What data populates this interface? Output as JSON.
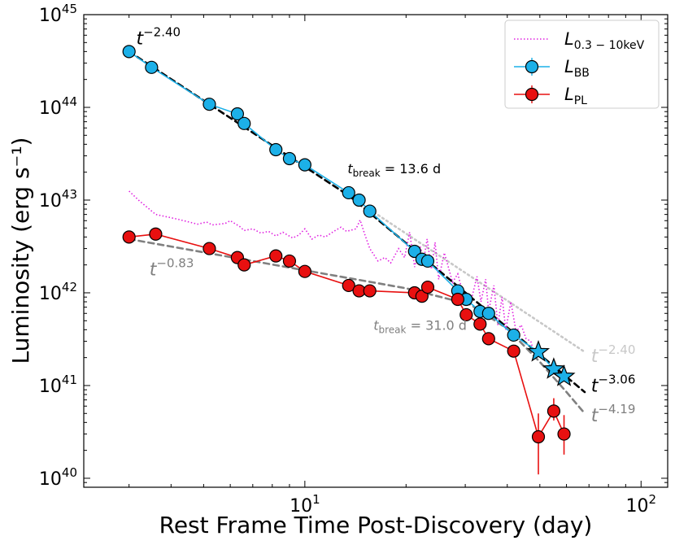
{
  "chart_data": {
    "type": "scatter",
    "x_scale": "log",
    "y_scale": "log",
    "xlabel": "Rest Frame Time Post-Discovery (day)",
    "ylabel": "Luminosity (erg s⁻¹)",
    "xlim": [
      2.2,
      120
    ],
    "ylim": [
      8e+39,
      1e+45
    ],
    "x_ticks": [
      {
        "value": 10,
        "base": "10",
        "exp": "1"
      },
      {
        "value": 100,
        "base": "10",
        "exp": "2"
      }
    ],
    "y_ticks": [
      {
        "value": 1e+40,
        "base": "10",
        "exp": "40"
      },
      {
        "value": 1e+41,
        "base": "10",
        "exp": "41"
      },
      {
        "value": 1e+42,
        "base": "10",
        "exp": "42"
      },
      {
        "value": 1e+43,
        "base": "10",
        "exp": "43"
      },
      {
        "value": 1e+44,
        "base": "10",
        "exp": "44"
      },
      {
        "value": 1e+45,
        "base": "10",
        "exp": "45"
      }
    ],
    "legend": {
      "placement": "top-right",
      "entries": [
        {
          "id": "xray",
          "main": "L",
          "sub": "0.3 − 10keV",
          "color": "#e020e0",
          "style": "dotted"
        },
        {
          "id": "bb",
          "main": "L",
          "sub": "BB",
          "color": "#1cb0e8",
          "style": "marker"
        },
        {
          "id": "pl",
          "main": "L",
          "sub": "PL",
          "color": "#e81010",
          "style": "marker"
        }
      ]
    },
    "series": [
      {
        "name": "L_0.3-10keV",
        "color": "#e020e0",
        "style": "dotted",
        "x": [
          3.0,
          3.2,
          3.6,
          4.2,
          4.8,
          5.1,
          5.3,
          5.8,
          6.0,
          6.4,
          6.6,
          7.0,
          7.4,
          7.8,
          8.2,
          8.6,
          9.2,
          9.6,
          10.0,
          10.5,
          11.0,
          11.5,
          12.2,
          12.8,
          13.3,
          14.2,
          14.6,
          15.1,
          15.6,
          16.5,
          17.3,
          18.0,
          19.0,
          19.8,
          20.5,
          21.2,
          22.0,
          22.6,
          23.1,
          23.8,
          24.4,
          25.0,
          26.0,
          27.5,
          28.5,
          29.5,
          30.5,
          31.3,
          32.5,
          33.4,
          34.5,
          35.2,
          36.5,
          37.5,
          38.6,
          39.6,
          41.0,
          42.5,
          44.0,
          45.5,
          47.0,
          48.5
        ],
        "y": [
          1.25e+43,
          1e+43,
          7e+42,
          6.2e+42,
          5.5e+42,
          5.8e+42,
          5.4e+42,
          5.6e+42,
          6e+42,
          5.2e+42,
          4.7e+42,
          4.9e+42,
          4.4e+42,
          4.6e+42,
          4.1e+42,
          4.5e+42,
          3.9e+42,
          4.2e+42,
          4.9e+42,
          3.8e+42,
          4.2e+42,
          4e+42,
          4.6e+42,
          5.1e+42,
          4.6e+42,
          4.9e+42,
          6.1e+42,
          4.2e+42,
          3e+42,
          2.2e+42,
          2.4e+42,
          2.1e+42,
          3e+42,
          2.4e+42,
          4.5e+42,
          1.9e+42,
          3.2e+42,
          2.3e+42,
          3.8e+42,
          1.8e+42,
          3.5e+42,
          1.4e+42,
          2.7e+42,
          1.3e+42,
          1.6e+42,
          1e+42,
          7.5e+41,
          8.5e+41,
          1.5e+42,
          8e+41,
          1.4e+42,
          6.3e+41,
          1.2e+42,
          4.5e+41,
          9e+41,
          4e+41,
          8e+41,
          3.8e+41,
          4.5e+41,
          3.2e+41,
          3e+41,
          2e+41
        ]
      },
      {
        "name": "L_BB",
        "color": "#1cb0e8",
        "style": "marker",
        "x": [
          3.0,
          3.5,
          5.2,
          6.3,
          6.6,
          8.2,
          9.0,
          10.0,
          13.5,
          14.5,
          15.6,
          21.2,
          22.3,
          23.2,
          28.5,
          30.2,
          33.2,
          35.2,
          41.8
        ],
        "y": [
          4e+44,
          2.7e+44,
          1.08e+44,
          8.5e+43,
          6.7e+43,
          3.5e+43,
          2.8e+43,
          2.4e+43,
          1.2e+43,
          1e+43,
          7.6e+42,
          2.8e+42,
          2.3e+42,
          2.2e+42,
          1.05e+42,
          8.5e+41,
          6.3e+41,
          6e+41,
          3.5e+41
        ],
        "star_points": {
          "x": [
            49.5,
            55.0,
            59.0
          ],
          "y": [
            2.3e+41,
            1.5e+41,
            1.25e+41
          ]
        }
      },
      {
        "name": "L_PL",
        "color": "#e81010",
        "style": "marker",
        "x": [
          3.0,
          3.6,
          5.2,
          6.3,
          6.6,
          8.2,
          9.0,
          10.0,
          13.5,
          14.5,
          15.6,
          21.2,
          22.3,
          23.2,
          28.5,
          30.2,
          33.2,
          35.2,
          41.8,
          49.5,
          55.0,
          59.0
        ],
        "y": [
          4e+42,
          4.3e+42,
          3e+42,
          2.4e+42,
          2e+42,
          2.5e+42,
          2.2e+42,
          1.7e+42,
          1.2e+42,
          1.05e+42,
          1.05e+42,
          1e+42,
          9.2e+41,
          1.15e+42,
          8.5e+41,
          5.8e+41,
          4.6e+41,
          3.2e+41,
          2.35e+41,
          2.8e+40,
          5.3e+40,
          3e+40
        ],
        "yerr_low": [
          null,
          null,
          null,
          null,
          null,
          null,
          null,
          null,
          null,
          null,
          null,
          null,
          null,
          null,
          null,
          null,
          null,
          null,
          null,
          1.1e+40,
          4.2e+40,
          1.8e+40
        ],
        "yerr_high": [
          null,
          null,
          null,
          null,
          null,
          null,
          null,
          null,
          null,
          null,
          null,
          null,
          null,
          null,
          null,
          null,
          null,
          null,
          null,
          5e+40,
          7.3e+40,
          4.8e+40
        ]
      }
    ],
    "fit_lines": [
      {
        "name": "t^-2.40 (BB)",
        "color": "#000000",
        "dash": "7,5",
        "width": 2.6,
        "x": [
          3.0,
          13.6,
          68.0
        ],
        "y": [
          4e+44,
          1.1e+43,
          8.5e+40
        ]
      },
      {
        "name": "t^-2.40 extension",
        "color": "#c8c8c8",
        "dash": "2,4",
        "width": 2.6,
        "x": [
          13.6,
          68.0
        ],
        "y": [
          1.1e+43,
          2.3e+41
        ]
      },
      {
        "name": "t^-0.83 (PL)",
        "color": "#808080",
        "dash": "7,5",
        "width": 2.6,
        "x": [
          3.0,
          10.0,
          20.0,
          31.0,
          40.0,
          50.0,
          60.0,
          68.0
        ],
        "y": [
          3.8e+42,
          1.75e+42,
          1.12e+42,
          7.5e+41,
          4.1e+41,
          1.8e+41,
          8.5e+40,
          5e+40
        ]
      }
    ],
    "annotations": [
      {
        "id": "bb_slope",
        "base": "t",
        "exp": "−2.40",
        "color": "#000000",
        "x": 3.15,
        "y": 4.8e+44
      },
      {
        "id": "pl_slope",
        "base": "t",
        "exp": "−0.83",
        "color": "#808080",
        "x": 3.45,
        "y": 1.55e+42
      },
      {
        "id": "bb_break",
        "base": "t",
        "sub": "break",
        "rest": " = 13.6 d",
        "color": "#000000",
        "x": 13.4,
        "y": 1.95e+43
      },
      {
        "id": "pl_break",
        "base": "t",
        "sub": "break",
        "rest": " = 31.0 d",
        "color": "#808080",
        "x": 16.0,
        "y": 4e+41
      },
      {
        "id": "ext_slope",
        "base": "t",
        "exp": "−2.40",
        "color": "#c8c8c8",
        "x": 71.0,
        "y": 1.8e+41
      },
      {
        "id": "bb_late_slope",
        "base": "t",
        "exp": "−3.06",
        "color": "#000000",
        "x": 71.0,
        "y": 8.6e+40
      },
      {
        "id": "pl_late_slope",
        "base": "t",
        "exp": "−4.19",
        "color": "#808080",
        "x": 71.0,
        "y": 4.1e+40
      }
    ]
  }
}
